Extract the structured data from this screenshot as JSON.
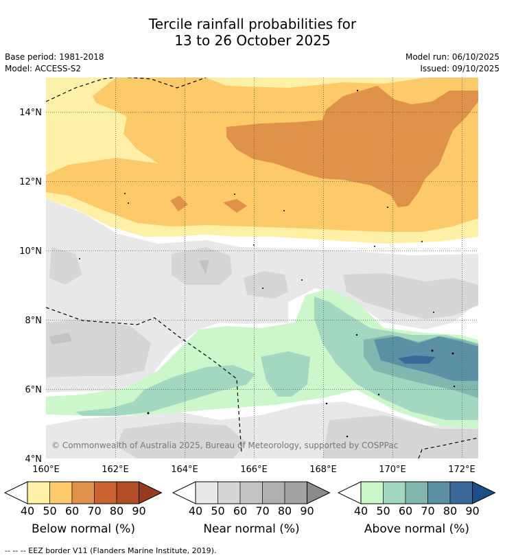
{
  "title_line1": "Tercile rainfall probabilities for",
  "title_line2": "13 to 26 October 2025",
  "base_period": "Base period: 1981-2018",
  "model": "Model: ACCESS-S2",
  "model_run": "Model run: 06/10/2025",
  "issued": "Issued: 09/10/2025",
  "map": {
    "lon_ticks": [
      "160°E",
      "162°E",
      "164°E",
      "166°E",
      "168°E",
      "170°E",
      "172°E"
    ],
    "lat_ticks": [
      "14°N",
      "12°N",
      "10°N",
      "8°N",
      "6°N",
      "4°N"
    ],
    "copyright": "© Commonwealth of Australia 2025, Bureau of Meteorology, supported by COSPPac"
  },
  "colorbars": [
    {
      "label": "Below normal (%)",
      "ticks": [
        "40",
        "50",
        "60",
        "70",
        "80",
        "90"
      ],
      "colors": [
        "#fff0a8",
        "#fdca6a",
        "#e0924a",
        "#cc6131",
        "#b24c27",
        "#963b1e"
      ]
    },
    {
      "label": "Near normal (%)",
      "ticks": [
        "40",
        "50",
        "60",
        "70",
        "80",
        "90"
      ],
      "colors": [
        "#e8e8e8",
        "#d6d6d6",
        "#c3c3c3",
        "#b0b0b0",
        "#a2a2a2",
        "#8a8a8a"
      ]
    },
    {
      "label": "Above normal (%)",
      "ticks": [
        "40",
        "50",
        "60",
        "70",
        "80",
        "90"
      ],
      "colors": [
        "#cbf7cb",
        "#a2d8c0",
        "#80b8af",
        "#5b91a5",
        "#3a6898",
        "#1a4f89"
      ]
    }
  ],
  "footnote": "--  --  -- EEZ border V11 (Flanders Marine Institute, 2019)."
}
